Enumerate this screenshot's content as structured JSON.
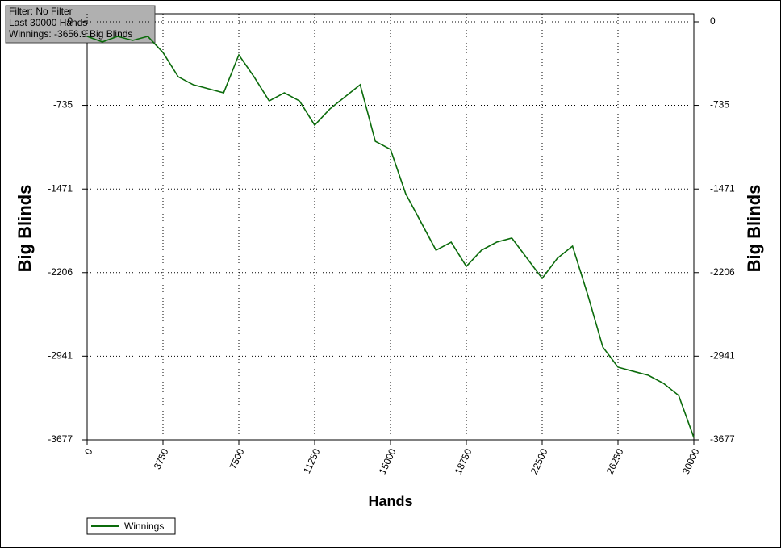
{
  "chart_data": {
    "type": "line",
    "info_lines": [
      "Filter: No Filter",
      "Last  30000 Hands",
      "Winnings: -3656.9 Big Blinds"
    ],
    "x_label": "Hands",
    "y_label": "Big Blinds",
    "y2_label": "Big Blinds",
    "x": [
      0,
      750,
      1500,
      2250,
      3000,
      3750,
      4500,
      5250,
      6000,
      6750,
      7500,
      8250,
      9000,
      9750,
      10500,
      11250,
      12000,
      12750,
      13500,
      14250,
      15000,
      15750,
      16500,
      17250,
      18000,
      18750,
      19500,
      20250,
      21000,
      21750,
      22500,
      23250,
      24000,
      24750,
      25500,
      26250,
      27000,
      27750,
      28500,
      29250,
      30000
    ],
    "series": [
      {
        "name": "Winnings",
        "color": "#0b6b0b",
        "values": [
          -128,
          -177,
          -128,
          -163,
          -128,
          -270,
          -483,
          -554,
          -589,
          -625,
          -291,
          -483,
          -696,
          -625,
          -696,
          -909,
          -767,
          -660,
          -554,
          -1051,
          -1122,
          -1512,
          -1760,
          -2009,
          -1938,
          -2151,
          -2009,
          -1938,
          -1902,
          -2080,
          -2257,
          -2080,
          -1973,
          -2399,
          -2861,
          -3038,
          -3074,
          -3109,
          -3180,
          -3287,
          -3657
        ]
      }
    ],
    "xlim": [
      0,
      30000
    ],
    "xticks": [
      0,
      3750,
      7500,
      11250,
      15000,
      18750,
      22500,
      26250,
      30000
    ],
    "ylim": [
      -3677,
      0
    ],
    "yticks": [
      0,
      -735,
      -1471,
      -2206,
      -2941,
      -3677
    ],
    "y2lim": [
      -3677,
      0
    ],
    "y2ticks": [
      0,
      -735,
      -1471,
      -2206,
      -2941,
      -3677
    ],
    "grid": true
  }
}
